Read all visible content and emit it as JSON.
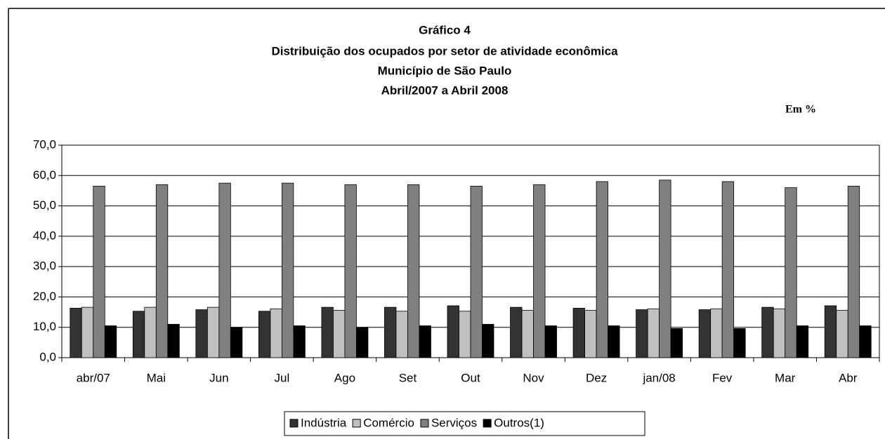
{
  "chart_data": {
    "type": "bar",
    "title": "Gráfico 4",
    "subtitle": [
      "Distribuição dos ocupados por setor de atividade econômica",
      "Município de São Paulo",
      "Abril/2007 a Abril 2008"
    ],
    "unit_note": "Em %",
    "categories": [
      "abr/07",
      "Mai",
      "Jun",
      "Jul",
      "Ago",
      "Set",
      "Out",
      "Nov",
      "Dez",
      "jan/08",
      "Fev",
      "Mar",
      "Abr"
    ],
    "series": [
      {
        "name": "Indústria",
        "color": "#333333",
        "values": [
          16.3,
          15.3,
          15.8,
          15.3,
          16.6,
          16.6,
          17.1,
          16.6,
          16.3,
          15.8,
          15.8,
          16.6,
          17.1
        ]
      },
      {
        "name": "Comércio",
        "color": "#c0c0c0",
        "values": [
          16.6,
          16.6,
          16.6,
          16.1,
          15.6,
          15.3,
          15.3,
          15.6,
          15.6,
          16.1,
          16.1,
          16.1,
          15.6
        ]
      },
      {
        "name": "Serviços",
        "color": "#808080",
        "values": [
          56.5,
          57.0,
          57.5,
          57.5,
          57.0,
          57.0,
          56.5,
          57.0,
          58.0,
          58.5,
          58.0,
          56.0,
          56.5
        ]
      },
      {
        "name": "Outros(1)",
        "color": "#000000",
        "values": [
          10.5,
          11.0,
          10.0,
          10.5,
          10.0,
          10.5,
          11.0,
          10.5,
          10.5,
          9.6,
          9.6,
          10.5,
          10.5
        ]
      }
    ],
    "ylim": [
      0,
      70
    ],
    "yticks": [
      {
        "value": 0,
        "label": "0,0"
      },
      {
        "value": 10,
        "label": "10,0"
      },
      {
        "value": 20,
        "label": "20,0"
      },
      {
        "value": 30,
        "label": "30,0"
      },
      {
        "value": 40,
        "label": "40,0"
      },
      {
        "value": 50,
        "label": "50,0"
      },
      {
        "value": 60,
        "label": "60,0"
      },
      {
        "value": 70,
        "label": "70,0"
      }
    ],
    "grid": true,
    "legend": "bottom"
  }
}
